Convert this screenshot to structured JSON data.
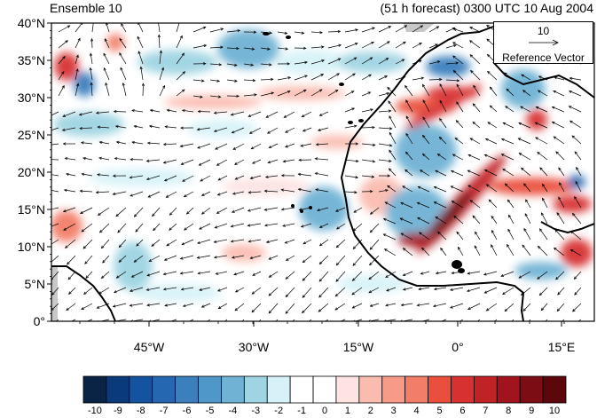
{
  "header": {
    "left": "Ensemble 10",
    "right": "(51 h forecast) 0300 UTC 10 Aug 2004"
  },
  "axes": {
    "lat_labels": [
      "40°N",
      "35°N",
      "30°N",
      "25°N",
      "20°N",
      "15°N",
      "10°N",
      "5°N",
      "0°"
    ],
    "lon_labels": [
      "45°W",
      "30°W",
      "15°W",
      "0°",
      "15°E"
    ]
  },
  "legend": {
    "value": "10",
    "label": "Reference Vector"
  },
  "colorbar": {
    "labels": [
      "-10",
      "-9",
      "-8",
      "-7",
      "-6",
      "-5",
      "-4",
      "-3",
      "-2",
      "-1",
      "0",
      "1",
      "2",
      "3",
      "4",
      "5",
      "6",
      "7",
      "8",
      "9",
      "10"
    ],
    "colors": [
      "#0a2445",
      "#0b3a7a",
      "#13539f",
      "#2567b0",
      "#3b7fbd",
      "#4f97c9",
      "#6fb2d4",
      "#9fd4e2",
      "#d6f2f8",
      "#ffffff",
      "#ffffff",
      "#fde3e2",
      "#fbbcb0",
      "#f79b88",
      "#f27e69",
      "#ea4f3e",
      "#d73131",
      "#c12226",
      "#a1141d",
      "#7d0d14",
      "#5c070c"
    ]
  },
  "colors": {
    "land": "#000000",
    "missing": "#c8c8c8"
  }
}
